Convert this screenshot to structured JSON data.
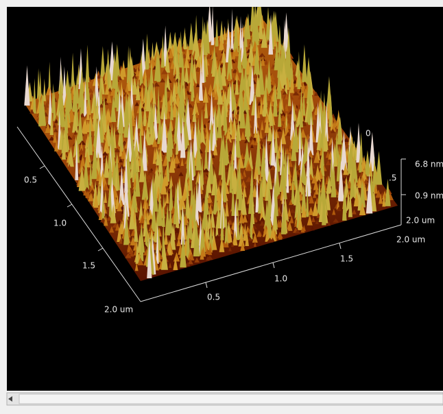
{
  "viewer": {
    "left_axis_labels": [
      "0.5",
      "1.0",
      "1.5",
      "2.0 um"
    ],
    "front_axis_labels": [
      "0.5",
      "1.0",
      "1.5",
      "2.0 um"
    ],
    "height_axis_labels": [
      "6.8 nm",
      "0.9 nm",
      "2.0 um"
    ],
    "back_axis_labels": [
      "0",
      ".5"
    ]
  }
}
